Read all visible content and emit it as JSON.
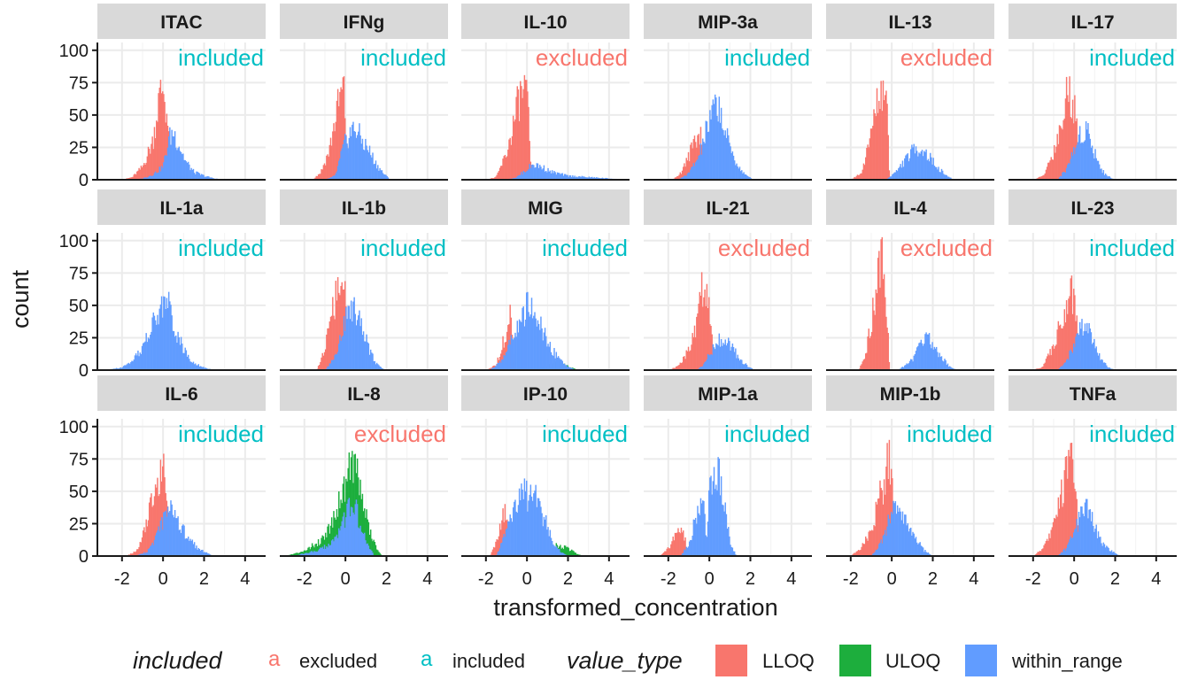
{
  "chart_data": {
    "type": "histogram-facets",
    "xlabel": "transformed_concentration",
    "ylabel": "count",
    "xlim": [
      -3.2,
      5
    ],
    "ylim": [
      0,
      106
    ],
    "xticks": [
      -2,
      0,
      2,
      4
    ],
    "yticks": [
      0,
      25,
      50,
      75,
      100
    ],
    "x_tick_labels": [
      "-2",
      "0",
      "2",
      "4"
    ],
    "y_tick_labels": [
      "0",
      "25",
      "50",
      "75",
      "100"
    ],
    "grid": true,
    "colors": {
      "LLOQ": "#F8766D",
      "ULOQ": "#1DAE3D",
      "within_range": "#619CFF",
      "excluded": "#F8766D",
      "included": "#00BFC4"
    },
    "legend": {
      "position": "bottom",
      "included_title": "included",
      "included_entries": [
        {
          "key": "excluded",
          "glyph": "a",
          "color": "#F8766D"
        },
        {
          "key": "included",
          "glyph": "a",
          "color": "#00BFC4"
        }
      ],
      "value_type_title": "value_type",
      "value_type_entries": [
        {
          "key": "LLOQ",
          "color": "#F8766D"
        },
        {
          "key": "ULOQ",
          "color": "#1DAE3D"
        },
        {
          "key": "within_range",
          "color": "#619CFF"
        }
      ]
    },
    "panels": [
      {
        "name": "ITAC",
        "status": "included",
        "series": {
          "LLOQ": {
            "x": [
              -2,
              -1.5,
              -1.0,
              -0.5,
              -0.2,
              0.0,
              0.2,
              0.4
            ],
            "y": [
              0,
              2,
              10,
              30,
              62,
              72,
              48,
              0
            ]
          },
          "within_range": {
            "x": [
              -1.5,
              -1.0,
              -0.5,
              0.0,
              0.3,
              0.5,
              0.8,
              1.1,
              1.5,
              2.0,
              2.5,
              3.0
            ],
            "y": [
              0,
              1,
              4,
              10,
              32,
              37,
              26,
              14,
              6,
              3,
              1,
              0
            ]
          }
        }
      },
      {
        "name": "IFNg",
        "status": "included",
        "series": {
          "LLOQ": {
            "x": [
              -1.6,
              -1.2,
              -0.8,
              -0.4,
              -0.1,
              0.0,
              0.2
            ],
            "y": [
              0,
              6,
              22,
              55,
              72,
              45,
              0
            ]
          },
          "within_range": {
            "x": [
              -1.0,
              -0.5,
              -0.1,
              0.2,
              0.5,
              0.8,
              1.1,
              1.5,
              1.9,
              2.2
            ],
            "y": [
              0,
              3,
              25,
              36,
              40,
              30,
              24,
              12,
              4,
              0
            ]
          }
        }
      },
      {
        "name": "IL-10",
        "status": "excluded",
        "series": {
          "LLOQ": {
            "x": [
              -2.0,
              -1.5,
              -1.0,
              -0.7,
              -0.4,
              -0.1,
              0.1,
              0.2
            ],
            "y": [
              0,
              2,
              20,
              40,
              62,
              70,
              45,
              0
            ]
          },
          "within_range": {
            "x": [
              -1.0,
              -0.5,
              0.0,
              0.3,
              0.7,
              1.2,
              2.0,
              3.0,
              4.0,
              4.8
            ],
            "y": [
              0,
              2,
              8,
              12,
              10,
              6,
              3,
              2,
              1,
              0
            ]
          }
        }
      },
      {
        "name": "MIP-3a",
        "status": "included",
        "series": {
          "LLOQ": {
            "x": [
              -1.8,
              -1.4,
              -1.0,
              -0.7,
              -0.4,
              -0.1
            ],
            "y": [
              0,
              5,
              18,
              33,
              36,
              0
            ]
          },
          "within_range": {
            "x": [
              -1.5,
              -1.0,
              -0.5,
              -0.2,
              0.1,
              0.4,
              0.7,
              1.0,
              1.4,
              1.8,
              2.2
            ],
            "y": [
              0,
              5,
              18,
              35,
              48,
              62,
              40,
              25,
              10,
              3,
              0
            ]
          }
        }
      },
      {
        "name": "IL-13",
        "status": "excluded",
        "series": {
          "LLOQ": {
            "x": [
              -2.0,
              -1.5,
              -1.2,
              -0.9,
              -0.6,
              -0.3,
              -0.1
            ],
            "y": [
              0,
              5,
              22,
              45,
              68,
              75,
              0
            ]
          },
          "within_range": {
            "x": [
              -0.3,
              0.2,
              0.6,
              1.0,
              1.4,
              1.8,
              2.2,
              2.6,
              3.0
            ],
            "y": [
              0,
              6,
              14,
              22,
              25,
              18,
              10,
              4,
              0
            ]
          }
        }
      },
      {
        "name": "IL-17",
        "status": "included",
        "series": {
          "LLOQ": {
            "x": [
              -2.0,
              -1.5,
              -1.0,
              -0.5,
              -0.3,
              -0.1,
              0.1,
              0.3
            ],
            "y": [
              0,
              3,
              22,
              50,
              72,
              64,
              45,
              0
            ]
          },
          "within_range": {
            "x": [
              -0.8,
              -0.4,
              0.0,
              0.3,
              0.6,
              0.9,
              1.2,
              1.5,
              2.0
            ],
            "y": [
              0,
              8,
              22,
              36,
              40,
              26,
              12,
              4,
              0
            ]
          }
        }
      },
      {
        "name": "IL-1a",
        "status": "included",
        "series": {
          "within_range": {
            "x": [
              -2.8,
              -2.0,
              -1.5,
              -1.0,
              -0.5,
              -0.2,
              0.0,
              0.3,
              0.6,
              1.0,
              1.5,
              2.0,
              2.5
            ],
            "y": [
              0,
              2,
              6,
              18,
              35,
              42,
              55,
              48,
              32,
              15,
              6,
              2,
              0
            ]
          }
        }
      },
      {
        "name": "IL-1b",
        "status": "included",
        "series": {
          "LLOQ": {
            "x": [
              -1.4,
              -1.1,
              -0.8,
              -0.5,
              -0.2,
              0.0,
              0.2
            ],
            "y": [
              0,
              12,
              30,
              55,
              66,
              52,
              0
            ]
          },
          "within_range": {
            "x": [
              -1.0,
              -0.6,
              -0.3,
              0.0,
              0.3,
              0.6,
              0.9,
              1.2,
              1.5,
              1.9
            ],
            "y": [
              0,
              8,
              22,
              40,
              52,
              45,
              30,
              15,
              5,
              0
            ]
          }
        }
      },
      {
        "name": "MIG",
        "status": "included",
        "series": {
          "ULOQ": {
            "x": [
              0.5,
              1.0,
              1.5,
              2.0,
              2.5
            ],
            "y": [
              0,
              4,
              6,
              3,
              0
            ]
          },
          "LLOQ": {
            "x": [
              -2.0,
              -1.5,
              -1.1,
              -0.8,
              -0.6
            ],
            "y": [
              0,
              4,
              25,
              42,
              0
            ]
          },
          "within_range": {
            "x": [
              -1.8,
              -1.2,
              -0.8,
              -0.4,
              0.0,
              0.4,
              0.8,
              1.2,
              1.6,
              2.0,
              2.4
            ],
            "y": [
              0,
              8,
              22,
              35,
              48,
              42,
              28,
              16,
              8,
              3,
              0
            ]
          }
        }
      },
      {
        "name": "IL-21",
        "status": "excluded",
        "series": {
          "LLOQ": {
            "x": [
              -2.0,
              -1.5,
              -1.0,
              -0.6,
              -0.3,
              -0.1,
              0.1,
              0.2
            ],
            "y": [
              0,
              3,
              15,
              35,
              70,
              60,
              38,
              0
            ]
          },
          "within_range": {
            "x": [
              -0.6,
              -0.2,
              0.2,
              0.6,
              1.0,
              1.4,
              1.8,
              2.2
            ],
            "y": [
              0,
              6,
              18,
              26,
              20,
              10,
              4,
              0
            ]
          }
        }
      },
      {
        "name": "IL-4",
        "status": "excluded",
        "series": {
          "LLOQ": {
            "x": [
              -1.6,
              -1.3,
              -1.0,
              -0.7,
              -0.4,
              -0.1
            ],
            "y": [
              0,
              12,
              35,
              70,
              98,
              0
            ]
          },
          "within_range": {
            "x": [
              0.3,
              0.7,
              1.1,
              1.4,
              1.7,
              2.0,
              2.4,
              2.8,
              3.2
            ],
            "y": [
              0,
              4,
              10,
              22,
              28,
              20,
              10,
              3,
              0
            ]
          }
        }
      },
      {
        "name": "IL-23",
        "status": "included",
        "series": {
          "LLOQ": {
            "x": [
              -2.0,
              -1.5,
              -1.0,
              -0.6,
              -0.3,
              -0.1,
              0.1,
              0.3
            ],
            "y": [
              0,
              3,
              20,
              40,
              58,
              60,
              42,
              0
            ]
          },
          "within_range": {
            "x": [
              -0.8,
              -0.4,
              0.0,
              0.3,
              0.6,
              0.9,
              1.2,
              1.6,
              2.0
            ],
            "y": [
              0,
              6,
              20,
              32,
              36,
              22,
              12,
              3,
              0
            ]
          }
        }
      },
      {
        "name": "IL-6",
        "status": "included",
        "series": {
          "LLOQ": {
            "x": [
              -1.8,
              -1.3,
              -0.8,
              -0.5,
              -0.2,
              0.0,
              0.2,
              0.4
            ],
            "y": [
              0,
              4,
              25,
              45,
              65,
              68,
              42,
              0
            ]
          },
          "within_range": {
            "x": [
              -1.4,
              -0.8,
              -0.4,
              0.0,
              0.3,
              0.6,
              0.9,
              1.3,
              1.8,
              2.3,
              2.8
            ],
            "y": [
              0,
              3,
              12,
              28,
              36,
              34,
              22,
              12,
              5,
              1,
              0
            ]
          }
        }
      },
      {
        "name": "IL-8",
        "status": "excluded",
        "series": {
          "ULOQ": {
            "x": [
              -3.0,
              -2.4,
              -1.8,
              -1.2,
              -0.8,
              -0.4,
              0.0,
              0.3,
              0.6,
              0.9,
              1.2,
              1.5,
              1.8
            ],
            "y": [
              0,
              2,
              6,
              12,
              22,
              38,
              58,
              78,
              60,
              40,
              18,
              6,
              0
            ]
          },
          "within_range": {
            "x": [
              -2.6,
              -2.0,
              -1.4,
              -0.9,
              -0.5,
              -0.1,
              0.2,
              0.5,
              0.8,
              1.1,
              1.4
            ],
            "y": [
              0,
              2,
              4,
              8,
              14,
              26,
              40,
              36,
              20,
              8,
              0
            ]
          }
        }
      },
      {
        "name": "IP-10",
        "status": "included",
        "series": {
          "ULOQ": {
            "x": [
              0.8,
              1.4,
              2.0,
              2.4,
              2.7
            ],
            "y": [
              0,
              8,
              6,
              2,
              0
            ]
          },
          "LLOQ": {
            "x": [
              -1.8,
              -1.5,
              -1.2,
              -1.0,
              -0.8
            ],
            "y": [
              0,
              10,
              28,
              38,
              0
            ]
          },
          "within_range": {
            "x": [
              -1.5,
              -1.0,
              -0.6,
              -0.3,
              0.0,
              0.3,
              0.6,
              0.9,
              1.2,
              1.6,
              2.0
            ],
            "y": [
              0,
              18,
              40,
              52,
              45,
              50,
              38,
              26,
              14,
              4,
              0
            ]
          }
        }
      },
      {
        "name": "MIP-1a",
        "status": "included",
        "series": {
          "LLOQ": {
            "x": [
              -2.4,
              -2.0,
              -1.6,
              -1.3,
              -1.0
            ],
            "y": [
              0,
              6,
              18,
              20,
              0
            ]
          },
          "within_range": {
            "x": [
              -1.4,
              -1.0,
              -0.6,
              -0.3,
              -0.1,
              0.0,
              0.2,
              0.4,
              0.7,
              1.0,
              1.3
            ],
            "y": [
              0,
              10,
              32,
              42,
              10,
              55,
              72,
              70,
              40,
              12,
              0
            ]
          }
        }
      },
      {
        "name": "MIP-1b",
        "status": "included",
        "series": {
          "LLOQ": {
            "x": [
              -2.0,
              -1.5,
              -1.0,
              -0.6,
              -0.3,
              -0.1,
              0.0,
              0.2
            ],
            "y": [
              0,
              6,
              20,
              45,
              62,
              80,
              58,
              0
            ]
          },
          "within_range": {
            "x": [
              -1.0,
              -0.6,
              -0.3,
              0.0,
              0.3,
              0.6,
              0.9,
              1.2,
              1.6,
              2.0
            ],
            "y": [
              0,
              8,
              20,
              32,
              38,
              30,
              22,
              12,
              4,
              0
            ]
          }
        }
      },
      {
        "name": "TNFa",
        "status": "included",
        "series": {
          "LLOQ": {
            "x": [
              -2.0,
              -1.5,
              -1.0,
              -0.6,
              -0.3,
              -0.1,
              0.1,
              0.3
            ],
            "y": [
              0,
              6,
              22,
              48,
              70,
              75,
              52,
              0
            ]
          },
          "within_range": {
            "x": [
              -0.8,
              -0.4,
              0.0,
              0.3,
              0.6,
              0.9,
              1.2,
              1.6,
              2.0,
              2.3
            ],
            "y": [
              0,
              6,
              18,
              30,
              36,
              26,
              14,
              6,
              2,
              0
            ]
          }
        }
      }
    ]
  }
}
